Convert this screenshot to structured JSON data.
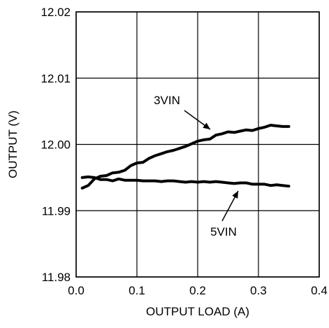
{
  "chart_data": {
    "type": "line",
    "title": "",
    "xlabel": "OUTPUT LOAD (A)",
    "ylabel": "OUTPUT (V)",
    "xlim": [
      0.0,
      0.4
    ],
    "ylim": [
      11.98,
      12.02
    ],
    "x_ticks": [
      0.0,
      0.1,
      0.2,
      0.3,
      0.4
    ],
    "y_ticks": [
      11.98,
      11.99,
      12.0,
      12.01,
      12.02
    ],
    "x_tick_labels": [
      "0.0",
      "0.1",
      "0.2",
      "0.3",
      "0.4"
    ],
    "y_tick_labels": [
      "11.98",
      "11.99",
      "12.00",
      "12.01",
      "12.02"
    ],
    "grid": true,
    "series": [
      {
        "name": "3VIN",
        "x": [
          0.01,
          0.02,
          0.03,
          0.04,
          0.05,
          0.06,
          0.07,
          0.08,
          0.09,
          0.1,
          0.11,
          0.12,
          0.13,
          0.14,
          0.15,
          0.16,
          0.17,
          0.18,
          0.19,
          0.2,
          0.21,
          0.22,
          0.23,
          0.24,
          0.25,
          0.26,
          0.27,
          0.28,
          0.29,
          0.3,
          0.31,
          0.32,
          0.33,
          0.34,
          0.35
        ],
        "y": [
          11.9934,
          11.9938,
          11.9948,
          11.9952,
          11.9953,
          11.9957,
          11.9958,
          11.9961,
          11.9968,
          11.9972,
          11.9973,
          11.9979,
          11.9983,
          11.9986,
          11.9989,
          11.9991,
          11.9994,
          11.9997,
          12.0001,
          12.0005,
          12.0007,
          12.0008,
          12.0014,
          12.0016,
          12.0019,
          12.0018,
          12.002,
          12.0022,
          12.0021,
          12.0024,
          12.0026,
          12.0029,
          12.0028,
          12.0027,
          12.0027
        ]
      },
      {
        "name": "5VIN",
        "x": [
          0.01,
          0.02,
          0.03,
          0.04,
          0.05,
          0.06,
          0.07,
          0.08,
          0.09,
          0.1,
          0.11,
          0.12,
          0.13,
          0.14,
          0.15,
          0.16,
          0.17,
          0.18,
          0.19,
          0.2,
          0.21,
          0.22,
          0.23,
          0.24,
          0.25,
          0.26,
          0.27,
          0.28,
          0.29,
          0.3,
          0.31,
          0.32,
          0.33,
          0.34,
          0.35
        ],
        "y": [
          11.995,
          11.9951,
          11.995,
          11.9947,
          11.9947,
          11.9945,
          11.9948,
          11.9946,
          11.9946,
          11.9946,
          11.9945,
          11.9945,
          11.9945,
          11.9944,
          11.9945,
          11.9945,
          11.9944,
          11.9943,
          11.9944,
          11.9943,
          11.9944,
          11.9943,
          11.9944,
          11.9943,
          11.9942,
          11.9941,
          11.9942,
          11.9942,
          11.994,
          11.994,
          11.994,
          11.9938,
          11.9939,
          11.9938,
          11.9937
        ]
      }
    ],
    "annotations": [
      {
        "text": "3VIN",
        "series": "3VIN",
        "points_to_x": 0.21
      },
      {
        "text": "5VIN",
        "series": "5VIN",
        "points_to_x": 0.28
      }
    ]
  }
}
